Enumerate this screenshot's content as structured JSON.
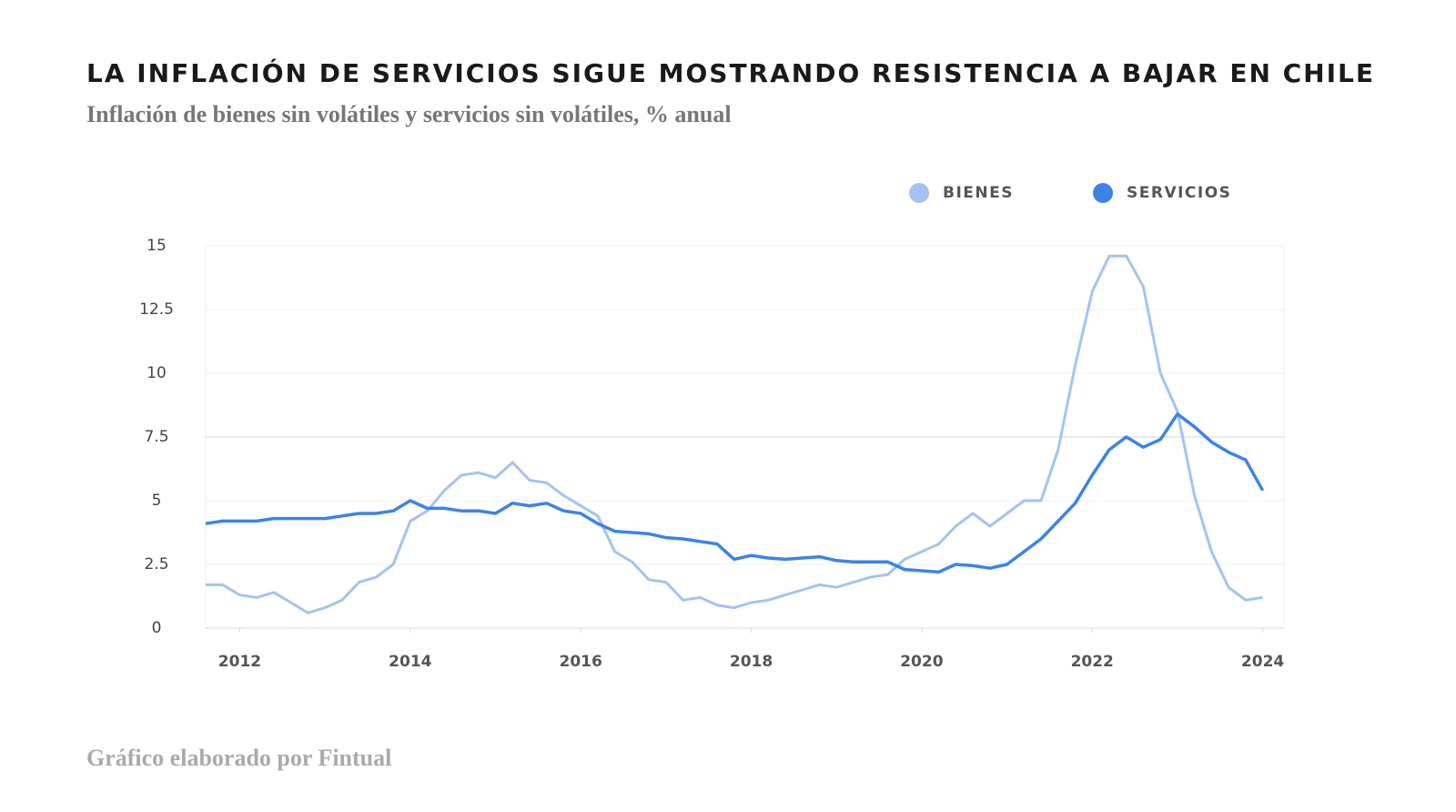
{
  "chart_data": {
    "type": "line",
    "title": "LA INFLACIÓN DE SERVICIOS SIGUE MOSTRANDO RESISTENCIA A BAJAR EN CHILE",
    "subtitle": "Inflación de bienes sin volátiles y servicios sin volátiles, % anual",
    "source": "Gráfico elaborado por Fintual",
    "x": [
      2011.6,
      2011.8,
      2012.0,
      2012.2,
      2012.4,
      2012.6,
      2012.8,
      2013.0,
      2013.2,
      2013.4,
      2013.6,
      2013.8,
      2014.0,
      2014.2,
      2014.4,
      2014.6,
      2014.8,
      2015.0,
      2015.2,
      2015.4,
      2015.6,
      2015.8,
      2016.0,
      2016.2,
      2016.4,
      2016.6,
      2016.8,
      2017.0,
      2017.2,
      2017.4,
      2017.6,
      2017.8,
      2018.0,
      2018.2,
      2018.4,
      2018.6,
      2018.8,
      2019.0,
      2019.2,
      2019.4,
      2019.6,
      2019.8,
      2020.0,
      2020.2,
      2020.4,
      2020.6,
      2020.8,
      2021.0,
      2021.2,
      2021.4,
      2021.6,
      2021.8,
      2022.0,
      2022.2,
      2022.4,
      2022.6,
      2022.8,
      2023.0,
      2023.2,
      2023.4,
      2023.6,
      2023.8,
      2024.0
    ],
    "series": [
      {
        "name": "BIENES",
        "color": "#a4c2f4",
        "values": [
          1.7,
          1.7,
          1.3,
          1.2,
          1.4,
          1.0,
          0.6,
          0.8,
          1.1,
          1.8,
          2.0,
          2.5,
          4.2,
          4.6,
          5.4,
          6.0,
          6.1,
          5.9,
          6.5,
          5.8,
          5.7,
          5.2,
          4.8,
          4.4,
          3.0,
          2.6,
          1.9,
          1.8,
          1.1,
          1.2,
          0.9,
          0.8,
          1.0,
          1.1,
          1.3,
          1.5,
          1.7,
          1.6,
          1.8,
          2.0,
          2.1,
          2.7,
          3.0,
          3.3,
          4.0,
          4.5,
          4.0,
          4.5,
          5.0,
          5.0,
          7.0,
          10.3,
          13.2,
          14.6,
          14.6,
          13.4,
          10.0,
          8.5,
          5.2,
          3.0,
          1.6,
          1.1,
          1.2
        ]
      },
      {
        "name": "SERVICIOS",
        "color": "#3c83e8",
        "values": [
          4.1,
          4.2,
          4.2,
          4.2,
          4.3,
          4.3,
          4.3,
          4.3,
          4.4,
          4.5,
          4.5,
          4.6,
          5.0,
          4.7,
          4.7,
          4.6,
          4.6,
          4.5,
          4.9,
          4.8,
          4.9,
          4.6,
          4.5,
          4.1,
          3.8,
          3.75,
          3.7,
          3.55,
          3.5,
          3.4,
          3.3,
          2.7,
          2.85,
          2.75,
          2.7,
          2.75,
          2.8,
          2.65,
          2.6,
          2.6,
          2.6,
          2.3,
          2.25,
          2.2,
          2.5,
          2.45,
          2.35,
          2.5,
          3.0,
          3.5,
          4.2,
          4.9,
          6.0,
          7.0,
          7.5,
          7.1,
          7.4,
          8.4,
          7.9,
          7.3,
          6.9,
          6.6,
          5.4
        ]
      }
    ],
    "xlim": [
      2011.6,
      2024.25
    ],
    "xticks": [
      2012,
      2014,
      2016,
      2018,
      2020,
      2022,
      2024
    ],
    "ylim": [
      0,
      15
    ],
    "yticks": [
      0,
      2.5,
      5,
      7.5,
      10,
      12.5,
      15
    ],
    "grid": true,
    "legend": "top-right"
  }
}
